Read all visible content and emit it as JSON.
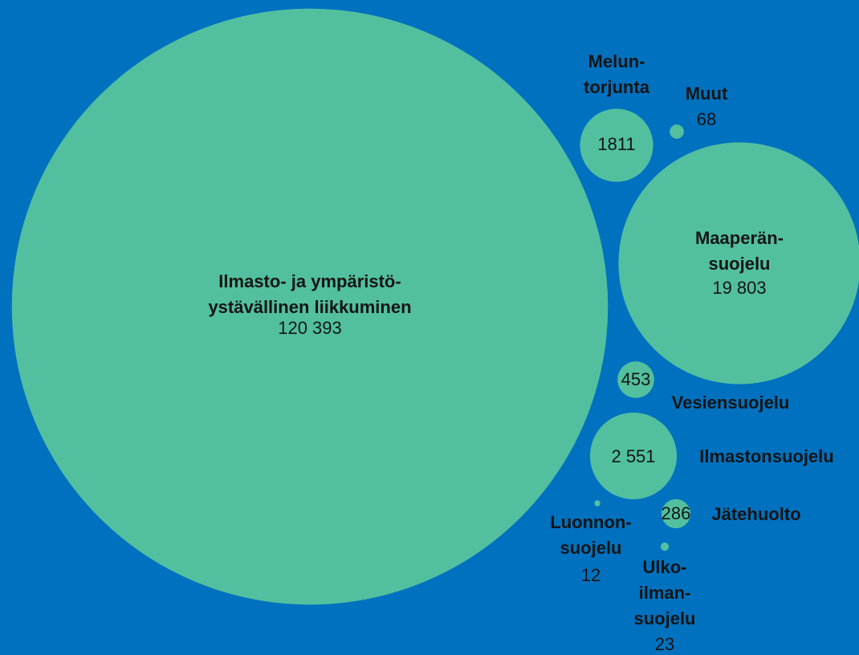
{
  "chart_data": {
    "type": "bubble",
    "categories": [
      [
        "Ilmasto- ja ympäristö-",
        "ystävällinen liikkuminen"
      ],
      [
        "Melun-",
        "torjunta"
      ],
      [
        "Muut"
      ],
      [
        "Maaperän-",
        "suojelu"
      ],
      [
        "Vesiensuojelu"
      ],
      [
        "Ilmastonsuojelu"
      ],
      [
        "Jätehuolto"
      ],
      [
        "Luonnon-",
        "suojelu"
      ],
      [
        "Ulko-",
        "ilman-",
        "suojelu"
      ]
    ],
    "values": [
      120393,
      1811,
      68,
      19803,
      453,
      2551,
      286,
      12,
      23
    ],
    "value_labels": [
      "120 393",
      "1811",
      "68",
      "19 803",
      "453",
      "2 551",
      "286",
      "12",
      "23"
    ],
    "color": "#52c09f",
    "background": "#0071bf"
  }
}
